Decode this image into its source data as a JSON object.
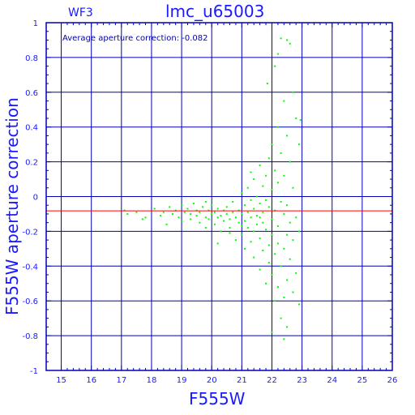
{
  "chart_data": {
    "type": "scatter",
    "title": "lmc_u65003",
    "subtitle": "WF3",
    "annotation": "Average aperture correction: -0.082",
    "xlabel": "F555W",
    "ylabel": "F555W aperture correction",
    "xlim": [
      14.5,
      26
    ],
    "ylim": [
      -1,
      1
    ],
    "xticks": [
      "15",
      "16",
      "17",
      "18",
      "19",
      "20",
      "21",
      "22",
      "23",
      "24",
      "25",
      "26"
    ],
    "yticks": [
      "1",
      "0.8",
      "0.6",
      "0.4",
      "0.2",
      "0",
      "-0.2",
      "-0.4",
      "-0.6",
      "-0.8",
      "-1"
    ],
    "grid": true,
    "reference_line": {
      "y": -0.082,
      "color": "#ff0000"
    },
    "zero_line": {
      "y": 0
    },
    "colors": {
      "axis": "#0000b4",
      "text": "#1a1aff",
      "points": "#00ff00",
      "reference": "#ff0000"
    },
    "series": [
      {
        "points": [
          [
            17.1,
            -0.08
          ],
          [
            17.2,
            -0.1
          ],
          [
            17.5,
            -0.09
          ],
          [
            17.7,
            -0.13
          ],
          [
            17.8,
            -0.12
          ],
          [
            18.1,
            -0.07
          ],
          [
            18.3,
            -0.11
          ],
          [
            18.4,
            -0.09
          ],
          [
            18.5,
            -0.16
          ],
          [
            18.6,
            -0.06
          ],
          [
            18.7,
            -0.1
          ],
          [
            18.8,
            -0.08
          ],
          [
            18.9,
            -0.12
          ],
          [
            19.0,
            -0.05
          ],
          [
            19.0,
            -0.14
          ],
          [
            19.1,
            -0.09
          ],
          [
            19.2,
            -0.07
          ],
          [
            19.3,
            -0.13
          ],
          [
            19.3,
            -0.1
          ],
          [
            19.4,
            -0.04
          ],
          [
            19.5,
            -0.11
          ],
          [
            19.5,
            -0.08
          ],
          [
            19.6,
            -0.15
          ],
          [
            19.6,
            -0.09
          ],
          [
            19.7,
            -0.06
          ],
          [
            19.8,
            -0.12
          ],
          [
            19.8,
            -0.18
          ],
          [
            19.9,
            -0.08
          ],
          [
            19.9,
            -0.13
          ],
          [
            20.0,
            -0.1
          ],
          [
            20.0,
            -0.05
          ],
          [
            20.1,
            -0.16
          ],
          [
            20.1,
            -0.09
          ],
          [
            20.2,
            -0.12
          ],
          [
            20.2,
            -0.07
          ],
          [
            20.3,
            -0.11
          ],
          [
            20.3,
            -0.2
          ],
          [
            20.4,
            -0.08
          ],
          [
            20.4,
            -0.14
          ],
          [
            20.5,
            -0.1
          ],
          [
            20.5,
            -0.06
          ],
          [
            20.6,
            -0.13
          ],
          [
            20.6,
            -0.18
          ],
          [
            20.7,
            -0.09
          ],
          [
            20.7,
            -0.03
          ],
          [
            20.8,
            -0.12
          ],
          [
            20.8,
            -0.25
          ],
          [
            20.9,
            -0.08
          ],
          [
            20.9,
            -0.15
          ],
          [
            21.0,
            0.02
          ],
          [
            21.0,
            -0.1
          ],
          [
            21.0,
            -0.22
          ],
          [
            21.1,
            -0.05
          ],
          [
            21.1,
            -0.14
          ],
          [
            21.1,
            -0.3
          ],
          [
            21.2,
            0.05
          ],
          [
            21.2,
            -0.09
          ],
          [
            21.2,
            -0.18
          ],
          [
            21.3,
            -0.02
          ],
          [
            21.3,
            -0.12
          ],
          [
            21.3,
            -0.26
          ],
          [
            21.4,
            0.1
          ],
          [
            21.4,
            -0.07
          ],
          [
            21.4,
            -0.2
          ],
          [
            21.4,
            -0.35
          ],
          [
            21.5,
            0.0
          ],
          [
            21.5,
            -0.11
          ],
          [
            21.5,
            -0.16
          ],
          [
            21.6,
            0.18
          ],
          [
            21.6,
            -0.04
          ],
          [
            21.6,
            -0.24
          ],
          [
            21.6,
            -0.42
          ],
          [
            21.7,
            0.06
          ],
          [
            21.7,
            -0.09
          ],
          [
            21.7,
            -0.15
          ],
          [
            21.7,
            -0.31
          ],
          [
            21.8,
            0.12
          ],
          [
            21.8,
            -0.02
          ],
          [
            21.8,
            -0.19
          ],
          [
            21.8,
            -0.5
          ],
          [
            21.9,
            0.22
          ],
          [
            21.9,
            -0.06
          ],
          [
            21.9,
            -0.28
          ],
          [
            21.9,
            -0.38
          ],
          [
            22.0,
            0.3
          ],
          [
            22.0,
            0.04
          ],
          [
            22.0,
            -0.13
          ],
          [
            22.0,
            -0.22
          ],
          [
            22.0,
            -0.45
          ],
          [
            22.1,
            0.15
          ],
          [
            22.1,
            -0.08
          ],
          [
            22.1,
            -0.33
          ],
          [
            22.1,
            -0.6
          ],
          [
            22.2,
            0.4
          ],
          [
            22.2,
            0.08
          ],
          [
            22.2,
            -0.17
          ],
          [
            22.2,
            -0.27
          ],
          [
            22.2,
            -0.52
          ],
          [
            22.3,
            0.25
          ],
          [
            22.3,
            -0.03
          ],
          [
            22.3,
            -0.4
          ],
          [
            22.3,
            -0.7
          ],
          [
            22.4,
            0.55
          ],
          [
            22.4,
            0.12
          ],
          [
            22.4,
            -0.1
          ],
          [
            22.4,
            -0.3
          ],
          [
            22.4,
            -0.58
          ],
          [
            22.5,
            0.35
          ],
          [
            22.5,
            -0.05
          ],
          [
            22.5,
            -0.22
          ],
          [
            22.5,
            -0.48
          ],
          [
            22.5,
            -0.75
          ],
          [
            22.6,
            0.88
          ],
          [
            22.6,
            0.2
          ],
          [
            22.6,
            -0.15
          ],
          [
            22.6,
            -0.36
          ],
          [
            22.7,
            0.6
          ],
          [
            22.7,
            0.05
          ],
          [
            22.7,
            -0.25
          ],
          [
            22.7,
            -0.55
          ],
          [
            22.8,
            0.45
          ],
          [
            22.8,
            -0.12
          ],
          [
            22.8,
            -0.44
          ],
          [
            22.9,
            0.3
          ],
          [
            22.9,
            -0.2
          ],
          [
            22.9,
            -0.62
          ],
          [
            22.95,
            0.44
          ],
          [
            22.3,
            0.91
          ],
          [
            22.5,
            0.9
          ],
          [
            22.1,
            0.75
          ],
          [
            22.2,
            0.82
          ],
          [
            21.85,
            0.65
          ],
          [
            22.0,
            -0.78
          ],
          [
            22.4,
            -0.82
          ],
          [
            21.6,
            -0.12
          ],
          [
            21.0,
            -0.17
          ],
          [
            20.6,
            -0.21
          ],
          [
            19.8,
            -0.03
          ],
          [
            20.2,
            -0.27
          ],
          [
            21.3,
            0.14
          ]
        ]
      }
    ]
  }
}
